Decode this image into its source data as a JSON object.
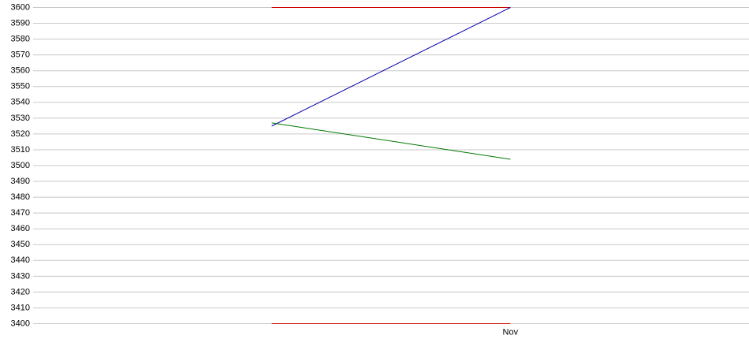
{
  "chart_data": {
    "type": "line",
    "categories": [
      null,
      null,
      "Nov",
      null
    ],
    "series": [
      {
        "color": "#cc0000",
        "values": [
          null,
          3600,
          3600,
          null
        ]
      },
      {
        "color": "#cc0000",
        "values": [
          null,
          3400,
          3400,
          null
        ]
      },
      {
        "color": "#0000aa",
        "values": [
          null,
          3525,
          3600,
          null
        ]
      },
      {
        "color": "#007700",
        "values": [
          null,
          3527,
          3504,
          null
        ]
      }
    ],
    "ylim": [
      3400,
      3600
    ],
    "yticks": [
      3400,
      3410,
      3420,
      3430,
      3440,
      3450,
      3460,
      3470,
      3480,
      3490,
      3500,
      3510,
      3520,
      3530,
      3540,
      3550,
      3560,
      3570,
      3580,
      3590,
      3600
    ],
    "grid": true
  }
}
